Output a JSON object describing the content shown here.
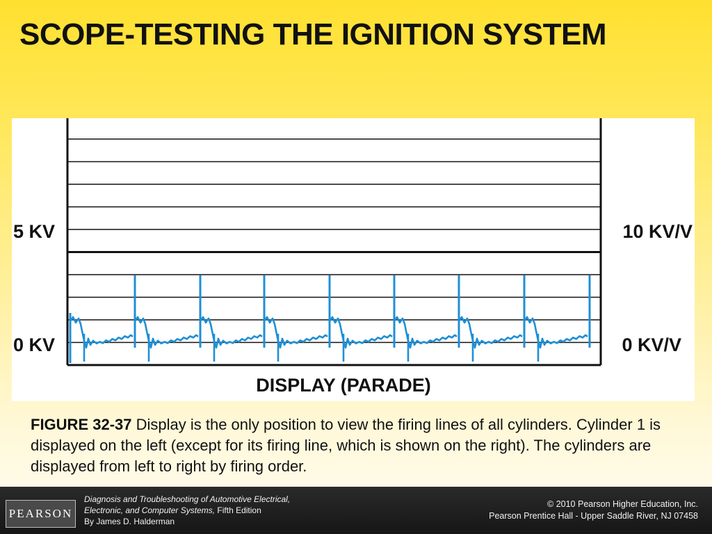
{
  "slide": {
    "title": "SCOPE-TESTING THE IGNITION SYSTEM"
  },
  "diagram": {
    "label_left_top": "5 KV",
    "label_left_bottom": "0 KV",
    "label_right_top": "10 KV/V",
    "label_right_bottom": "0 KV/V",
    "display_label": "DISPLAY (PARADE)",
    "colors": {
      "trace": "#1f8fd6",
      "grid": "#111111"
    }
  },
  "caption": {
    "figure_number": "FIGURE 32-37",
    "text": " Display is the only position to view the firing lines of all cylinders. Cylinder 1 is displayed on the left (except for its firing line, which is shown on the right). The cylinders are displayed from left to right by firing order."
  },
  "footer": {
    "logo_text": "PEARSON",
    "book_title_line1": "Diagnosis and Troubleshooting of Automotive Electrical,",
    "book_title_line2": "Electronic, and Computer Systems,",
    "edition": " Fifth Edition",
    "author": "By James D. Halderman",
    "copyright": "© 2010 Pearson Higher Education, Inc.",
    "publisher": "Pearson Prentice Hall - Upper Saddle River, NJ 07458"
  }
}
